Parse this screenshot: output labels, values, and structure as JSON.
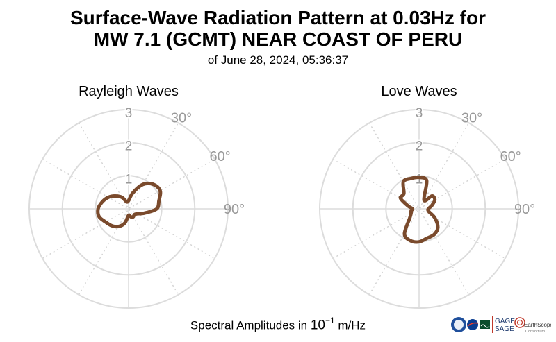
{
  "title_line1": "Surface-Wave Radiation Pattern at 0.03Hz for",
  "title_line2": "MW 7.1 (GCMT) NEAR COAST OF PERU",
  "subtitle": "of June 28, 2024, 05:36:37",
  "footer": {
    "prefix": "Spectral Amplitudes in ",
    "base": "10",
    "exponent": "−1",
    "unit": " m/Hz"
  },
  "logos": {
    "nsf": "NSF",
    "gage": "GAGE",
    "sage": "SAGE",
    "earthscope": "EarthScope",
    "earthscope_sub": "Consortium"
  },
  "colors": {
    "pattern": "#7a4a2c",
    "grid": "#dcdcdc",
    "labels": "#999999"
  },
  "chart_data": [
    {
      "type": "polar",
      "title": "Rayleigh Waves",
      "r_ticks": [
        "1",
        "2",
        "3"
      ],
      "theta_ticks": [
        "30°",
        "60°",
        "90°"
      ],
      "rlim": [
        0,
        3
      ],
      "grid": true,
      "theta_deg": [
        0,
        15,
        30,
        45,
        60,
        75,
        90,
        105,
        120,
        135,
        150,
        165,
        180,
        195,
        210,
        225,
        240,
        255,
        270,
        285,
        300,
        315,
        330,
        345
      ],
      "r": [
        0.25,
        0.5,
        0.85,
        1.05,
        1.1,
        0.95,
        0.85,
        0.5,
        0.3,
        0.25,
        0.28,
        0.25,
        0.2,
        0.45,
        0.62,
        0.72,
        0.8,
        0.92,
        0.92,
        0.82,
        0.7,
        0.55,
        0.4,
        0.22
      ]
    },
    {
      "type": "polar",
      "title": "Love Waves",
      "r_ticks": [
        "1",
        "2",
        "3"
      ],
      "theta_ticks": [
        "30°",
        "60°",
        "90°"
      ],
      "rlim": [
        0,
        3
      ],
      "grid": true,
      "theta_deg": [
        0,
        15,
        30,
        45,
        60,
        75,
        90,
        105,
        120,
        135,
        150,
        165,
        180,
        195,
        210,
        225,
        240,
        255,
        270,
        285,
        300,
        315,
        330,
        345
      ],
      "r": [
        0.95,
        0.88,
        0.3,
        0.55,
        0.55,
        0.4,
        0.28,
        0.3,
        0.55,
        0.8,
        0.9,
        0.92,
        1.0,
        1.0,
        0.88,
        0.4,
        0.28,
        0.25,
        0.2,
        0.35,
        0.65,
        0.65,
        0.95,
        0.95
      ]
    }
  ]
}
